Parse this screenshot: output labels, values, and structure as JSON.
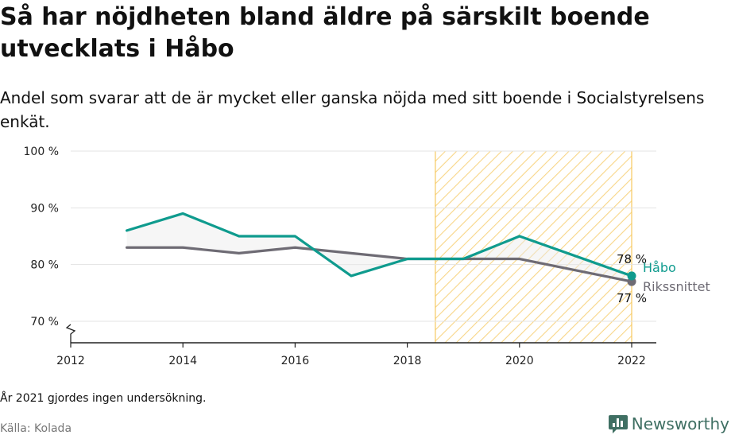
{
  "title": "Så har nöjdheten bland äldre på särskilt boende utvecklats i Håbo",
  "subtitle": "Andel som svarar att de är mycket eller ganska nöjda med sitt boende i Socialstyrelsens enkät.",
  "note": "År 2021 gjordes ingen undersökning.",
  "source": "Källa: Kolada",
  "brand": {
    "name": "Newsworthy",
    "color": "#3f6f63",
    "icon": "bar-chart-logo-icon"
  },
  "chart_data": {
    "type": "line",
    "title": "Så har nöjdheten bland äldre på särskilt boende utvecklats i Håbo",
    "subtitle": "Andel som svarar att de är mycket eller ganska nöjda med sitt boende i Socialstyrelsens enkät.",
    "xlim": [
      2012,
      2022
    ],
    "ylim": [
      70,
      100
    ],
    "y_axis_broken": true,
    "y_ticks": [
      {
        "value": 70,
        "label": "70 %"
      },
      {
        "value": 80,
        "label": "80 %"
      },
      {
        "value": 90,
        "label": "90 %"
      },
      {
        "value": 100,
        "label": "100 %"
      }
    ],
    "x_ticks": [
      {
        "value": 2012,
        "label": "2012"
      },
      {
        "value": 2014,
        "label": "2014"
      },
      {
        "value": 2016,
        "label": "2016"
      },
      {
        "value": 2018,
        "label": "2018"
      },
      {
        "value": 2020,
        "label": "2020"
      },
      {
        "value": 2022,
        "label": "2022"
      }
    ],
    "grid": "horizontal",
    "highlight_range": {
      "x0": 2018.5,
      "x1": 2022,
      "style": "hatched",
      "color": "#f6c85f"
    },
    "series": [
      {
        "name": "Håbo",
        "color": "#0f9b8e",
        "x": [
          2013,
          2014,
          2015,
          2016,
          2017,
          2018,
          2019,
          2020,
          2022
        ],
        "y": [
          86,
          89,
          85,
          85,
          78,
          81,
          81,
          85,
          78
        ],
        "end_label": "78 %"
      },
      {
        "name": "Rikssnittet",
        "color": "#6e6b74",
        "x": [
          2013,
          2014,
          2015,
          2016,
          2017,
          2018,
          2019,
          2020,
          2022
        ],
        "y": [
          83,
          83,
          82,
          83,
          82,
          81,
          81,
          81,
          77
        ],
        "end_label": "77 %"
      }
    ]
  }
}
